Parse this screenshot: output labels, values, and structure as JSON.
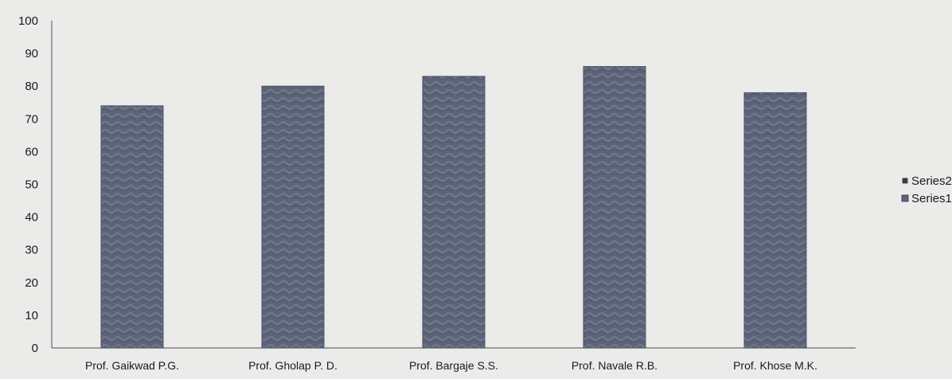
{
  "colors": {
    "background": "#ebebea",
    "series1_fill": "#5d6478",
    "series2_fill": "#3a3f52",
    "axis": "#6b6b6b",
    "text": "#1a1a1a"
  },
  "chart_data": {
    "type": "bar",
    "title": "",
    "xlabel": "",
    "ylabel": "",
    "ylim": [
      0,
      100
    ],
    "yticks": [
      0,
      10,
      20,
      30,
      40,
      50,
      60,
      70,
      80,
      90,
      100
    ],
    "grid": false,
    "legend_position": "right",
    "categories": [
      "Prof. Gaikwad P.G.",
      "Prof. Gholap P. D.",
      "Prof. Bargaje S.S.",
      "Prof. Navale R.B.",
      "Prof. Khose M.K."
    ],
    "series": [
      {
        "name": "Series1",
        "values": [
          74,
          80,
          83,
          86,
          78
        ]
      },
      {
        "name": "Series2",
        "values": [
          0,
          0,
          0,
          0,
          0
        ]
      }
    ],
    "legend": [
      "Series2",
      "Series1"
    ]
  }
}
